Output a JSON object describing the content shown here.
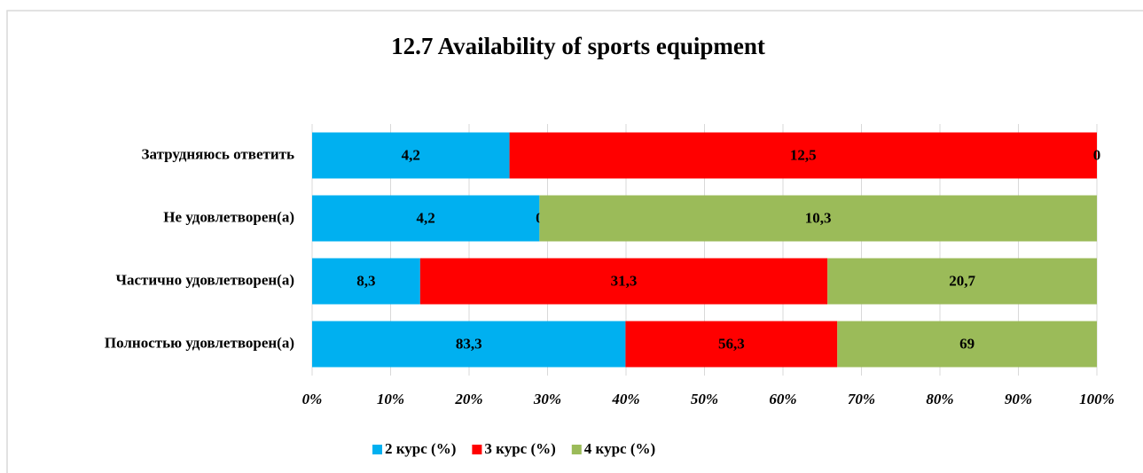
{
  "chart_data": {
    "type": "bar",
    "orientation": "horizontal",
    "stacking": "percent",
    "title": "12.7 Availability of sports equipment",
    "categories": [
      "Затрудняюсь ответить",
      "Не удовлетворен(а)",
      "Частично удовлетворен(а)",
      "Полностью удовлетворен(а)"
    ],
    "series": [
      {
        "name": "2 курс (%)",
        "color": "#00b0f0",
        "values": [
          4.2,
          4.2,
          8.3,
          83.3
        ],
        "value_labels": [
          "4,2",
          "4,2",
          "8,3",
          "83,3"
        ]
      },
      {
        "name": "3 курс (%)",
        "color": "#ff0000",
        "values": [
          12.5,
          0,
          31.3,
          56.3
        ],
        "value_labels": [
          "12,5",
          "0",
          "31,3",
          "56,3"
        ]
      },
      {
        "name": "4 курс (%)",
        "color": "#9bbb59",
        "values": [
          0,
          10.3,
          20.7,
          69
        ],
        "value_labels": [
          "0",
          "10,3",
          "20,7",
          "69"
        ]
      }
    ],
    "xlim": [
      0,
      100
    ],
    "xticks": [
      {
        "value": 0,
        "label": "0%"
      },
      {
        "value": 10,
        "label": "10%"
      },
      {
        "value": 20,
        "label": "20%"
      },
      {
        "value": 30,
        "label": "30%"
      },
      {
        "value": 40,
        "label": "40%"
      },
      {
        "value": 50,
        "label": "50%"
      },
      {
        "value": 60,
        "label": "60%"
      },
      {
        "value": 70,
        "label": "70%"
      },
      {
        "value": 80,
        "label": "80%"
      },
      {
        "value": 90,
        "label": "90%"
      },
      {
        "value": 100,
        "label": "100%"
      }
    ],
    "grid": true,
    "legend": "bottom"
  }
}
